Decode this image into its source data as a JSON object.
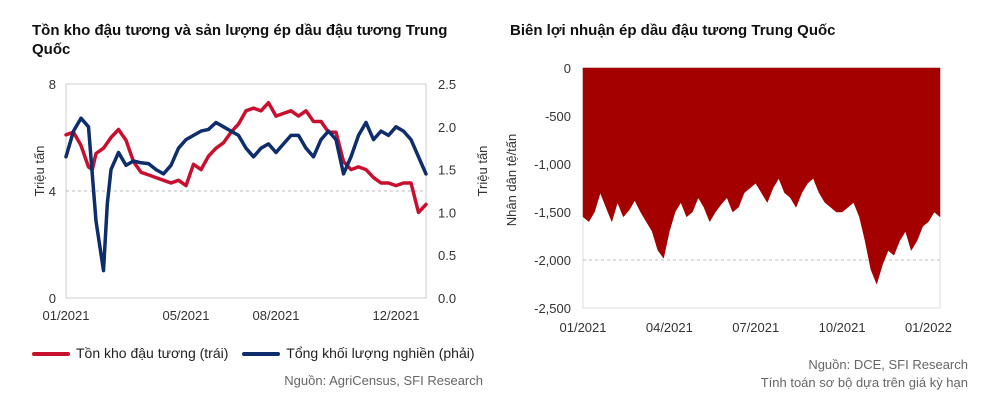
{
  "colors": {
    "red": "#c8102e",
    "navy": "#0d2d6b",
    "fill": "#a50000",
    "grid": "#bbbbbb"
  },
  "left_title": "Tồn kho đậu tương và sản lượng ép dầu đậu tương Trung Quốc",
  "right_title": "Biên lợi nhuận ép dầu đậu tương Trung Quốc",
  "left_source": "Nguồn: AgriCensus, SFI Research",
  "right_source_line1": "Nguồn: DCE, SFI Research",
  "right_source_line2": "Tính toán sơ bộ dựa trên giá kỳ hạn",
  "chart_data": [
    {
      "type": "line",
      "title": "Tồn kho đậu tương và sản lượng ép dầu đậu tương Trung Quốc",
      "ylabel_left": "Triệu tấn",
      "ylabel_right": "Triệu tấn",
      "ylim_left": [
        0,
        8
      ],
      "ylim_right": [
        0.0,
        2.5
      ],
      "yticks_left": [
        "0",
        "4",
        "8"
      ],
      "yticks_right": [
        "0.0",
        "0.5",
        "1.0",
        "1.5",
        "2.0",
        "2.5"
      ],
      "xticks": [
        "01/2021",
        "05/2021",
        "08/2021",
        "12/2021"
      ],
      "xlim": [
        0,
        48
      ],
      "xtick_positions": [
        0,
        16,
        28,
        44
      ],
      "gridline_left": 4,
      "legend": "bottom",
      "series": [
        {
          "name": "Tồn kho đậu tương (trái)",
          "axis": "left",
          "color": "#c8102e",
          "x": [
            0,
            1,
            2,
            3,
            3.5,
            4,
            5,
            6,
            7,
            8,
            9,
            10,
            11,
            12,
            13,
            14,
            15,
            16,
            17,
            18,
            19,
            20,
            21,
            22,
            23,
            24,
            25,
            26,
            27,
            28,
            29,
            30,
            31,
            32,
            33,
            34,
            35,
            36,
            37,
            38,
            39,
            40,
            41,
            42,
            43,
            44,
            45,
            46,
            47,
            48
          ],
          "y": [
            6.1,
            6.2,
            5.7,
            4.9,
            4.8,
            5.4,
            5.6,
            6.0,
            6.3,
            5.9,
            5.1,
            4.7,
            4.6,
            4.5,
            4.4,
            4.3,
            4.4,
            4.2,
            5.0,
            4.8,
            5.3,
            5.6,
            5.8,
            6.2,
            6.5,
            7.0,
            7.1,
            7.0,
            7.3,
            6.8,
            6.9,
            7.0,
            6.8,
            7.0,
            6.6,
            6.6,
            6.2,
            6.2,
            5.1,
            4.8,
            4.9,
            4.8,
            4.5,
            4.3,
            4.3,
            4.2,
            4.3,
            4.3,
            3.2,
            3.5
          ]
        },
        {
          "name": "Tổng khối lượng nghiền (phải)",
          "axis": "right",
          "color": "#0d2d6b",
          "x": [
            0,
            1,
            2,
            3,
            4,
            5,
            5.5,
            6,
            7,
            8,
            9,
            10,
            11,
            12,
            13,
            14,
            15,
            16,
            17,
            18,
            19,
            20,
            21,
            22,
            23,
            24,
            25,
            26,
            27,
            28,
            29,
            30,
            31,
            32,
            33,
            34,
            35,
            36,
            37,
            38,
            39,
            40,
            41,
            42,
            43,
            44,
            45,
            46,
            47,
            48
          ],
          "y": [
            1.65,
            1.95,
            2.1,
            2.0,
            0.9,
            0.32,
            1.1,
            1.5,
            1.7,
            1.55,
            1.6,
            1.58,
            1.57,
            1.5,
            1.45,
            1.55,
            1.75,
            1.85,
            1.9,
            1.95,
            1.97,
            2.05,
            2.0,
            1.95,
            1.9,
            1.75,
            1.65,
            1.75,
            1.8,
            1.7,
            1.8,
            1.9,
            1.9,
            1.75,
            1.65,
            1.85,
            1.95,
            1.85,
            1.45,
            1.65,
            1.9,
            2.05,
            1.85,
            1.95,
            1.9,
            2.0,
            1.95,
            1.85,
            1.65,
            1.45
          ]
        }
      ]
    },
    {
      "type": "area",
      "title": "Biên lợi nhuận ép dầu đậu tương Trung Quốc",
      "ylabel": "Nhân dân tệ/tấn",
      "ylim": [
        -2500,
        0
      ],
      "yticks": [
        "0",
        "-500",
        "-1,000",
        "-1,500",
        "-2,000",
        "-2,500"
      ],
      "xticks": [
        "01/2021",
        "04/2021",
        "07/2021",
        "10/2021",
        "01/2022"
      ],
      "xlim": [
        0,
        12.4
      ],
      "xtick_positions": [
        0,
        3,
        6,
        9,
        12
      ],
      "gridline": -2000,
      "color": "#a50000",
      "x": [
        0,
        0.2,
        0.4,
        0.6,
        0.8,
        1.0,
        1.2,
        1.4,
        1.6,
        1.8,
        2.0,
        2.2,
        2.4,
        2.6,
        2.8,
        3.0,
        3.2,
        3.4,
        3.6,
        3.8,
        4.0,
        4.2,
        4.4,
        4.6,
        4.8,
        5.0,
        5.2,
        5.4,
        5.6,
        5.8,
        6.0,
        6.2,
        6.4,
        6.6,
        6.8,
        7.0,
        7.2,
        7.4,
        7.6,
        7.8,
        8.0,
        8.2,
        8.4,
        8.6,
        8.8,
        9.0,
        9.2,
        9.4,
        9.6,
        9.8,
        10.0,
        10.2,
        10.4,
        10.6,
        10.8,
        11.0,
        11.2,
        11.4,
        11.6,
        11.8,
        12.0,
        12.2,
        12.4
      ],
      "y": [
        -1550,
        -1600,
        -1500,
        -1300,
        -1450,
        -1600,
        -1400,
        -1550,
        -1480,
        -1380,
        -1500,
        -1600,
        -1700,
        -1900,
        -1980,
        -1700,
        -1500,
        -1400,
        -1550,
        -1500,
        -1350,
        -1450,
        -1600,
        -1500,
        -1420,
        -1350,
        -1500,
        -1450,
        -1300,
        -1250,
        -1200,
        -1300,
        -1400,
        -1250,
        -1150,
        -1300,
        -1350,
        -1450,
        -1300,
        -1200,
        -1150,
        -1300,
        -1400,
        -1450,
        -1500,
        -1500,
        -1450,
        -1400,
        -1550,
        -1800,
        -2100,
        -2250,
        -2050,
        -1900,
        -1950,
        -1800,
        -1700,
        -1900,
        -1800,
        -1650,
        -1600,
        -1500,
        -1550
      ]
    }
  ]
}
